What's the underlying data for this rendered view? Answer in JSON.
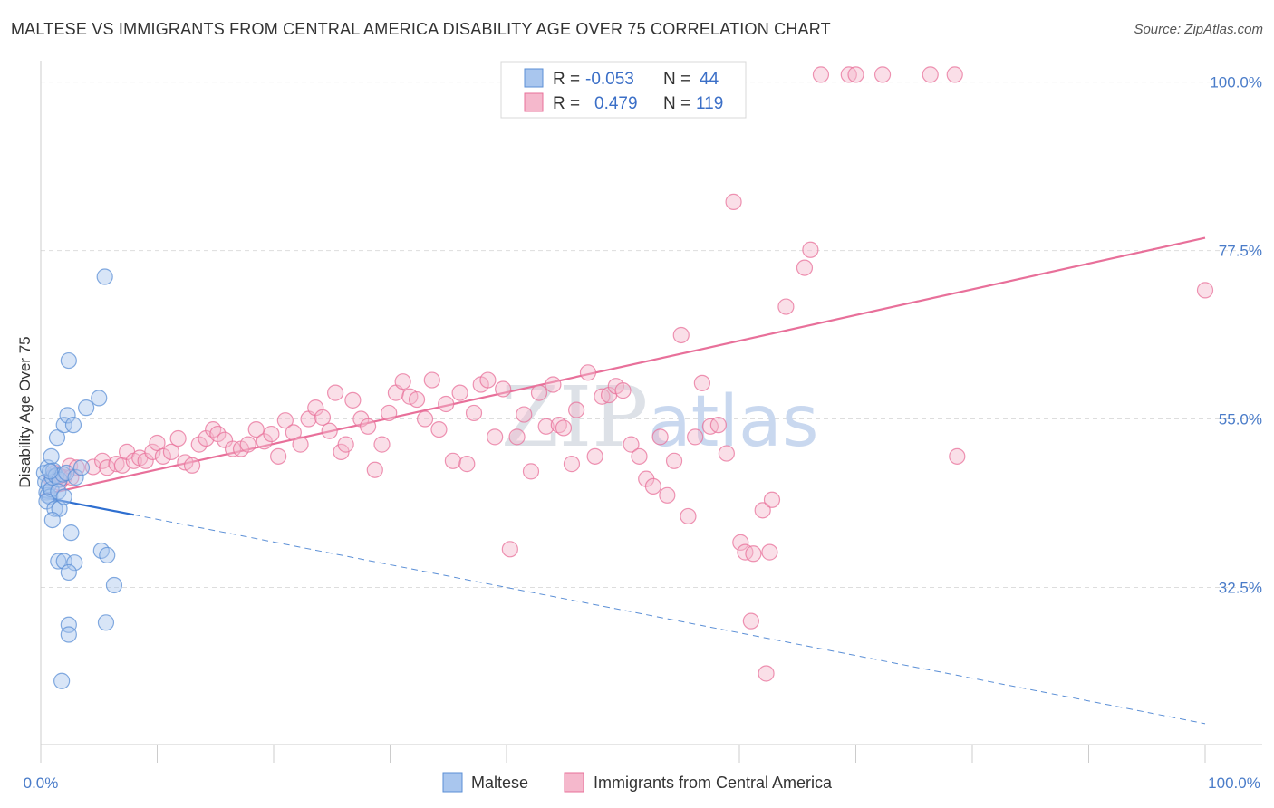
{
  "title": "MALTESE VS IMMIGRANTS FROM CENTRAL AMERICA DISABILITY AGE OVER 75 CORRELATION CHART",
  "source": "Source: ZipAtlas.com",
  "watermark": {
    "zip": "ZIP",
    "atlas": "atlas"
  },
  "colors": {
    "blue": "#5b8fd6",
    "blue_fill": "#a9c6ee",
    "pink": "#e8709a",
    "pink_fill": "#f5b8cc",
    "tick_text": "#4a7cc9",
    "grid": "#dddddd"
  },
  "legend": {
    "rows": [
      {
        "r_label": "R =",
        "r_value": "-0.053",
        "n_label": "N =",
        "n_value": "44"
      },
      {
        "r_label": "R =",
        "r_value": "0.479",
        "n_label": "N =",
        "n_value": "119"
      }
    ]
  },
  "bottom_legend": [
    "Maltese",
    "Immigrants from Central America"
  ],
  "chart_data": {
    "type": "scatter",
    "ylabel": "Disability Age Over 75",
    "x_ticks": [
      "0.0%",
      "100.0%"
    ],
    "y_ticks": [
      {
        "value": 100.0,
        "label": "100.0%"
      },
      {
        "value": 77.5,
        "label": "77.5%"
      },
      {
        "value": 55.0,
        "label": "55.0%"
      },
      {
        "value": 32.5,
        "label": "32.5%"
      }
    ],
    "xlim": [
      0,
      100
    ],
    "ylim": [
      11.5,
      102.5
    ],
    "grid": true,
    "series": [
      {
        "name": "Maltese",
        "r": -0.053,
        "n": 44,
        "trend": {
          "x0": 0,
          "y0": 44.6,
          "x1": 8,
          "y1": 42.2,
          "dash_x1": 100,
          "dash_y1": 14.3
        },
        "points": [
          [
            0.3,
            47.8
          ],
          [
            0.4,
            46.6
          ],
          [
            0.5,
            45.2
          ],
          [
            0.6,
            44.8
          ],
          [
            0.7,
            46.2
          ],
          [
            0.8,
            44.6
          ],
          [
            0.9,
            45.6
          ],
          [
            1.0,
            47.2
          ],
          [
            0.6,
            48.5
          ],
          [
            0.5,
            44.0
          ],
          [
            0.9,
            50.0
          ],
          [
            1.1,
            48.1
          ],
          [
            1.3,
            47.4
          ],
          [
            1.6,
            46.9
          ],
          [
            1.9,
            47.6
          ],
          [
            2.2,
            47.8
          ],
          [
            1.5,
            45.3
          ],
          [
            1.2,
            43.0
          ],
          [
            1.6,
            43.0
          ],
          [
            2.0,
            44.6
          ],
          [
            1.0,
            41.5
          ],
          [
            1.4,
            52.5
          ],
          [
            2.0,
            54.2
          ],
          [
            2.3,
            55.5
          ],
          [
            2.8,
            54.2
          ],
          [
            2.4,
            62.8
          ],
          [
            3.9,
            56.5
          ],
          [
            5.0,
            57.8
          ],
          [
            5.5,
            74.0
          ],
          [
            2.6,
            39.8
          ],
          [
            1.5,
            36.0
          ],
          [
            2.0,
            36.0
          ],
          [
            2.9,
            35.8
          ],
          [
            2.4,
            34.5
          ],
          [
            5.2,
            37.4
          ],
          [
            5.7,
            36.8
          ],
          [
            6.3,
            32.8
          ],
          [
            2.4,
            27.5
          ],
          [
            2.4,
            26.2
          ],
          [
            5.6,
            27.8
          ],
          [
            1.8,
            20.0
          ],
          [
            3.0,
            47.2
          ],
          [
            3.5,
            48.5
          ],
          [
            0.8,
            48.0
          ]
        ]
      },
      {
        "name": "Immigrants from Central America",
        "r": 0.479,
        "n": 119,
        "trend": {
          "x0": 0,
          "y0": 44.8,
          "x1": 100,
          "y1": 79.2
        },
        "points": [
          [
            0.9,
            47.0
          ],
          [
            1.2,
            47.8
          ],
          [
            1.6,
            46.5
          ],
          [
            2.0,
            47.2
          ],
          [
            2.5,
            48.7
          ],
          [
            3.1,
            48.5
          ],
          [
            1.6,
            47.4
          ],
          [
            2.6,
            47.2
          ],
          [
            4.5,
            48.6
          ],
          [
            5.3,
            49.4
          ],
          [
            5.7,
            48.5
          ],
          [
            6.5,
            49.0
          ],
          [
            7.0,
            48.8
          ],
          [
            7.4,
            50.6
          ],
          [
            8.0,
            49.4
          ],
          [
            8.5,
            49.8
          ],
          [
            9.0,
            49.4
          ],
          [
            9.6,
            50.6
          ],
          [
            10.0,
            51.8
          ],
          [
            10.5,
            50.0
          ],
          [
            11.2,
            50.6
          ],
          [
            11.8,
            52.4
          ],
          [
            12.4,
            49.2
          ],
          [
            13.0,
            48.8
          ],
          [
            13.6,
            51.6
          ],
          [
            14.2,
            52.4
          ],
          [
            14.8,
            53.6
          ],
          [
            15.2,
            53.0
          ],
          [
            15.8,
            52.2
          ],
          [
            16.5,
            51.0
          ],
          [
            17.2,
            51.0
          ],
          [
            17.8,
            51.6
          ],
          [
            18.5,
            53.6
          ],
          [
            19.2,
            52.0
          ],
          [
            19.8,
            53.0
          ],
          [
            20.4,
            50.0
          ],
          [
            21.0,
            54.8
          ],
          [
            21.7,
            53.2
          ],
          [
            22.3,
            51.6
          ],
          [
            23.0,
            55.0
          ],
          [
            23.6,
            56.5
          ],
          [
            24.2,
            55.2
          ],
          [
            24.8,
            53.4
          ],
          [
            25.3,
            58.5
          ],
          [
            25.8,
            50.6
          ],
          [
            26.2,
            51.6
          ],
          [
            26.8,
            57.5
          ],
          [
            27.5,
            55.0
          ],
          [
            28.1,
            54.0
          ],
          [
            28.7,
            48.2
          ],
          [
            29.3,
            51.6
          ],
          [
            29.9,
            55.8
          ],
          [
            30.5,
            58.5
          ],
          [
            31.1,
            60.0
          ],
          [
            31.7,
            58.0
          ],
          [
            32.3,
            57.6
          ],
          [
            33.0,
            55.0
          ],
          [
            33.6,
            60.2
          ],
          [
            34.2,
            53.6
          ],
          [
            34.8,
            57.0
          ],
          [
            35.4,
            49.4
          ],
          [
            36.0,
            58.5
          ],
          [
            36.6,
            49.0
          ],
          [
            37.2,
            55.8
          ],
          [
            37.8,
            59.6
          ],
          [
            38.4,
            60.2
          ],
          [
            39.0,
            52.6
          ],
          [
            39.7,
            59.0
          ],
          [
            40.3,
            37.6
          ],
          [
            40.9,
            52.6
          ],
          [
            41.5,
            55.6
          ],
          [
            42.1,
            48.0
          ],
          [
            42.8,
            58.5
          ],
          [
            43.4,
            54.0
          ],
          [
            44.0,
            59.6
          ],
          [
            44.5,
            54.2
          ],
          [
            44.9,
            53.8
          ],
          [
            45.6,
            49.0
          ],
          [
            46.0,
            56.2
          ],
          [
            47.0,
            61.2
          ],
          [
            47.6,
            50.0
          ],
          [
            48.2,
            58.0
          ],
          [
            48.8,
            58.2
          ],
          [
            49.4,
            59.4
          ],
          [
            50.0,
            58.8
          ],
          [
            50.7,
            51.6
          ],
          [
            51.4,
            50.0
          ],
          [
            52.0,
            47.0
          ],
          [
            52.6,
            46.0
          ],
          [
            53.2,
            52.6
          ],
          [
            53.8,
            44.8
          ],
          [
            54.4,
            49.4
          ],
          [
            55.0,
            66.2
          ],
          [
            55.6,
            42.0
          ],
          [
            56.2,
            52.6
          ],
          [
            56.8,
            59.8
          ],
          [
            57.5,
            54.0
          ],
          [
            58.2,
            54.2
          ],
          [
            58.9,
            50.4
          ],
          [
            59.5,
            84.0
          ],
          [
            60.1,
            38.5
          ],
          [
            60.5,
            37.2
          ],
          [
            61.2,
            37.0
          ],
          [
            62.0,
            42.8
          ],
          [
            62.6,
            37.2
          ],
          [
            62.8,
            44.2
          ],
          [
            64.0,
            70.0
          ],
          [
            65.6,
            75.2
          ],
          [
            66.1,
            77.6
          ],
          [
            67.0,
            101.0
          ],
          [
            69.4,
            101.0
          ],
          [
            70.0,
            101.0
          ],
          [
            72.3,
            101.0
          ],
          [
            76.4,
            101.0
          ],
          [
            78.5,
            101.0
          ],
          [
            78.7,
            50.0
          ],
          [
            61.0,
            28.0
          ],
          [
            62.3,
            21.0
          ],
          [
            100.0,
            72.2
          ]
        ]
      }
    ]
  }
}
